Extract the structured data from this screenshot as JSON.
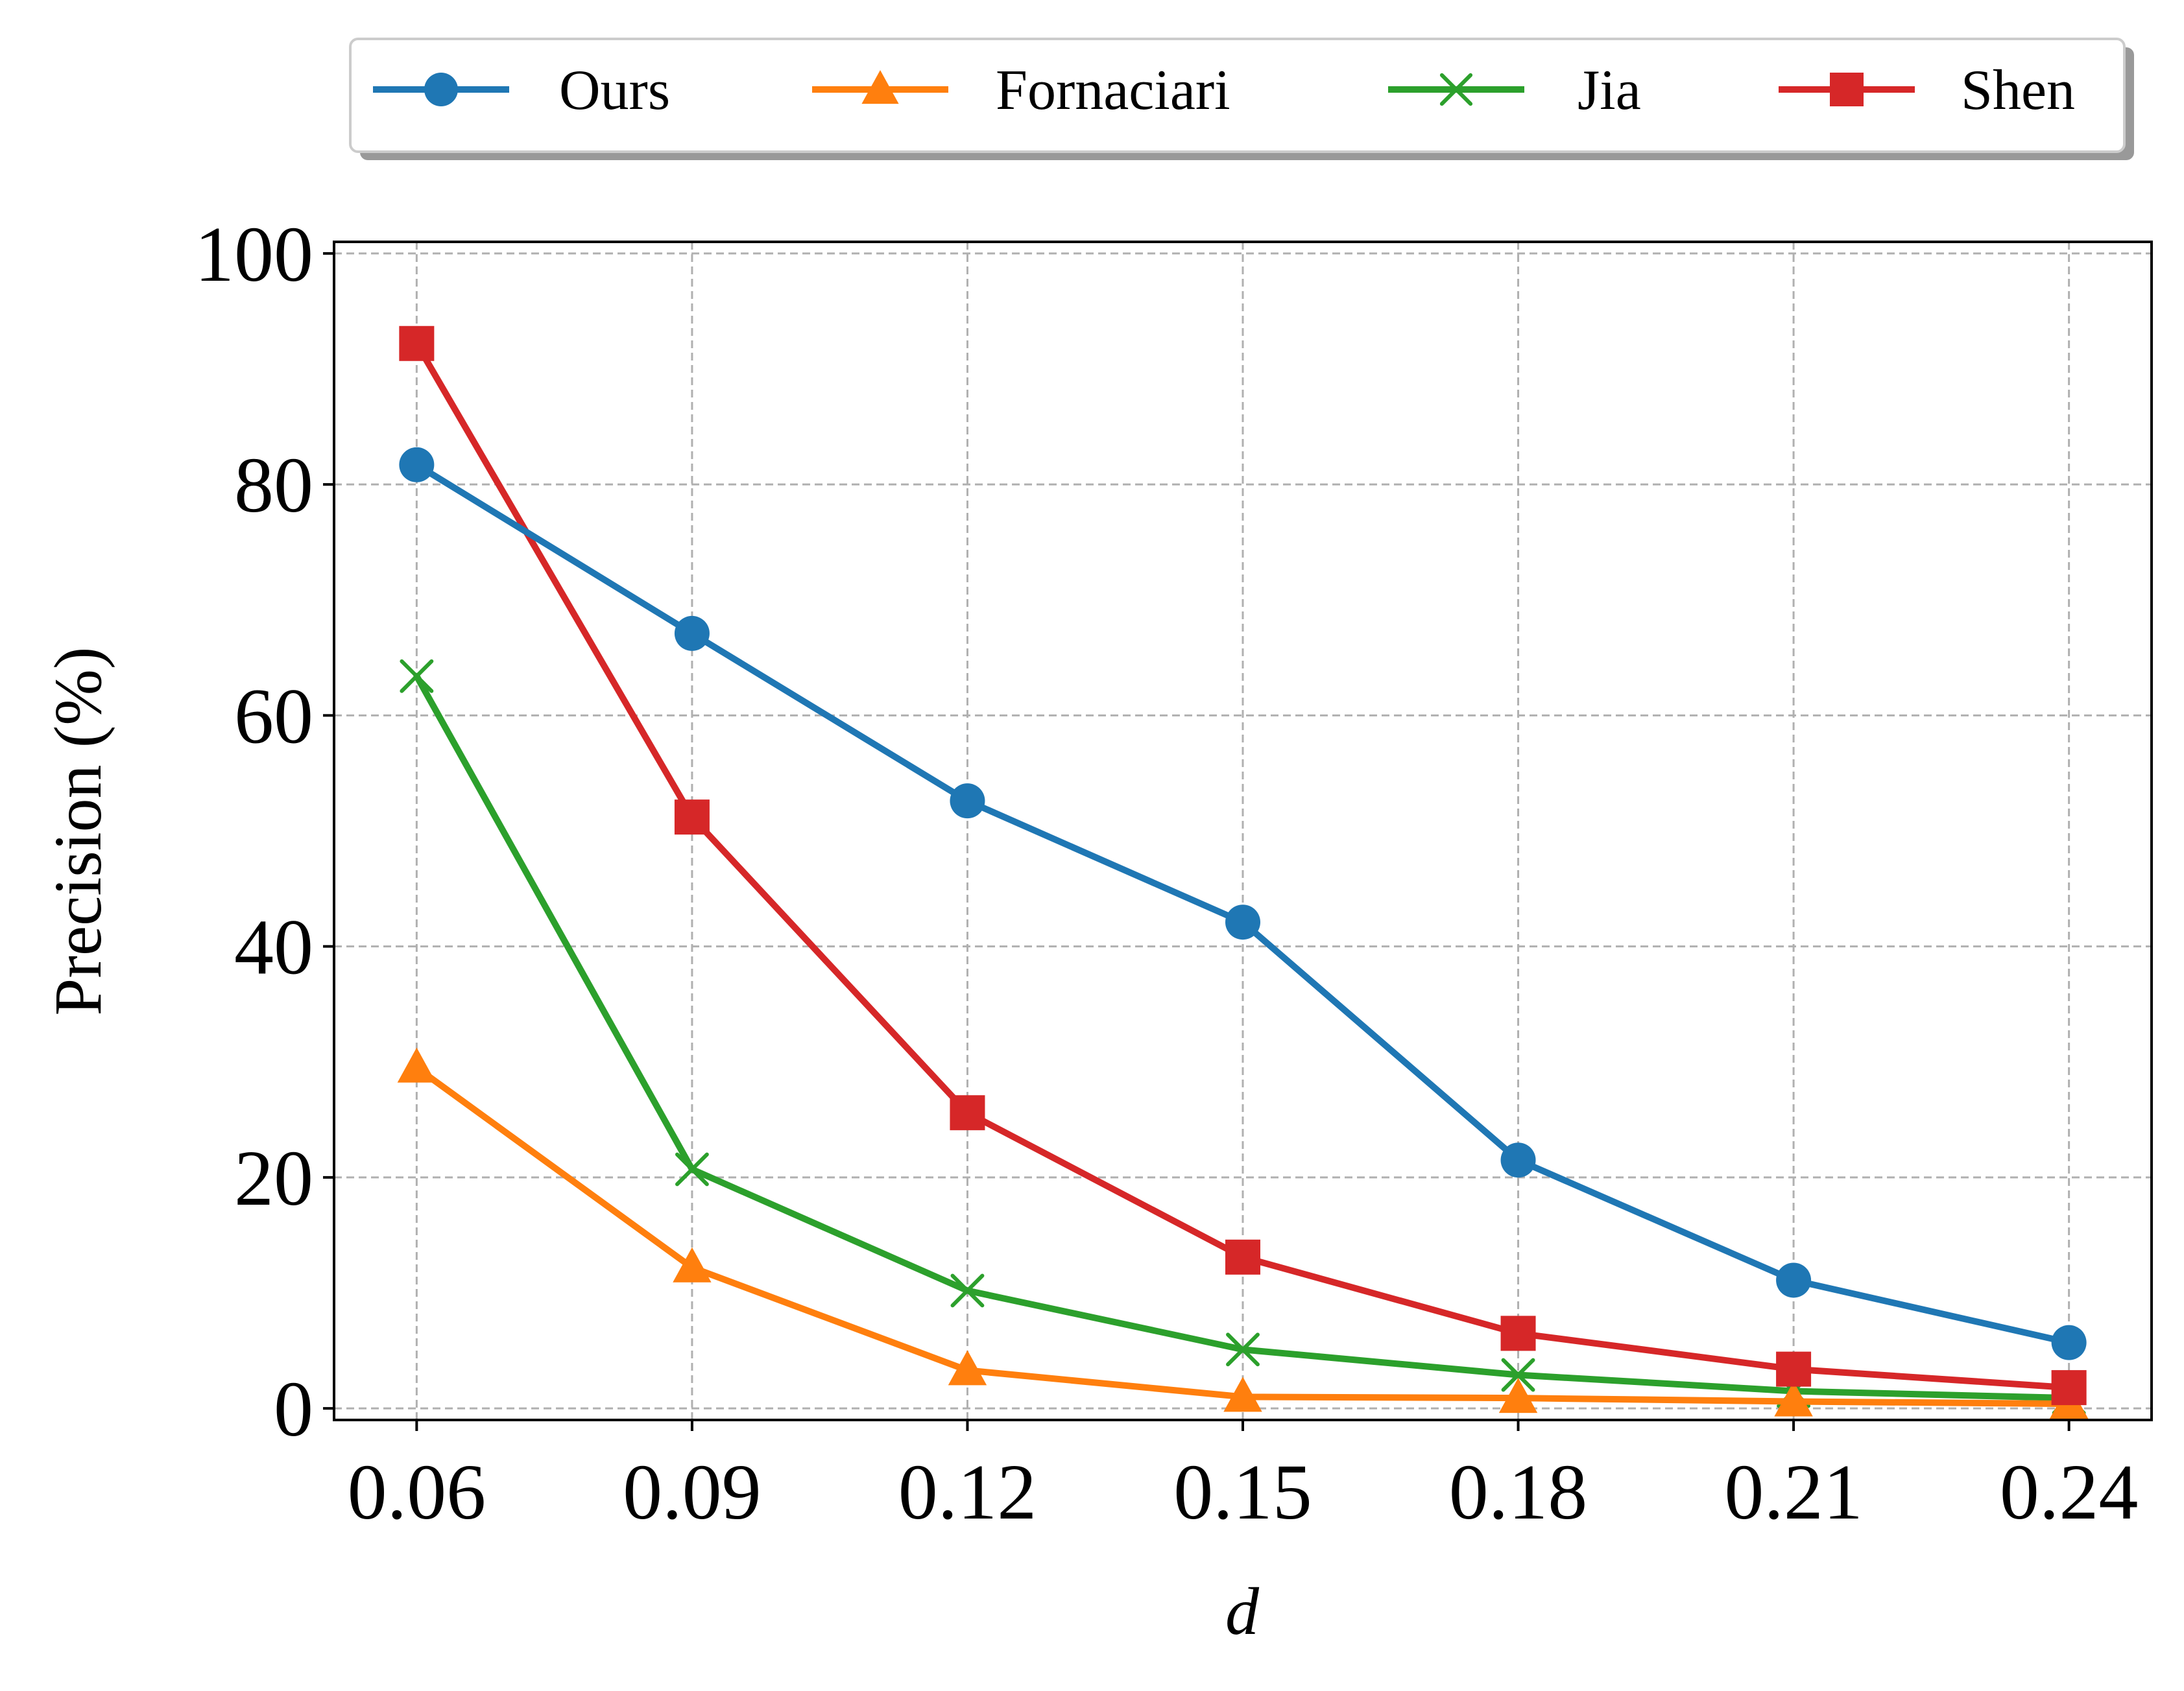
{
  "chart_data": {
    "type": "line",
    "title": "",
    "xlabel": "d",
    "ylabel": "Precision (%)",
    "categories": [
      "0.06",
      "0.09",
      "0.12",
      "0.15",
      "0.18",
      "0.21",
      "0.24"
    ],
    "x": [
      0.06,
      0.09,
      0.12,
      0.15,
      0.18,
      0.21,
      0.24
    ],
    "xlim": [
      0.051,
      0.249
    ],
    "ylim": [
      -1,
      101
    ],
    "yticks": [
      0,
      20,
      40,
      60,
      80,
      100
    ],
    "xtick_labels": [
      "0.06",
      "0.09",
      "0.12",
      "0.15",
      "0.18",
      "0.21",
      "0.24"
    ],
    "ytick_labels": [
      "0",
      "20",
      "40",
      "60",
      "80",
      "100"
    ],
    "grid": true,
    "legend_position": "top-outside",
    "series": [
      {
        "name": "Ours",
        "color": "#1f77b4",
        "marker": "circle",
        "values": [
          81.7,
          67.1,
          52.6,
          42.1,
          21.5,
          11.1,
          5.7
        ]
      },
      {
        "name": "Fornaciari",
        "color": "#ff7f0e",
        "marker": "triangle",
        "values": [
          29.5,
          12.2,
          3.3,
          1.0,
          0.9,
          0.6,
          0.4
        ]
      },
      {
        "name": "Jia",
        "color": "#2ca02c",
        "marker": "x",
        "values": [
          63.4,
          20.7,
          10.2,
          5.1,
          2.9,
          1.5,
          0.9
        ]
      },
      {
        "name": "Shen",
        "color": "#d62728",
        "marker": "square",
        "values": [
          92.2,
          51.2,
          25.6,
          13.1,
          6.5,
          3.4,
          1.8
        ]
      }
    ]
  }
}
